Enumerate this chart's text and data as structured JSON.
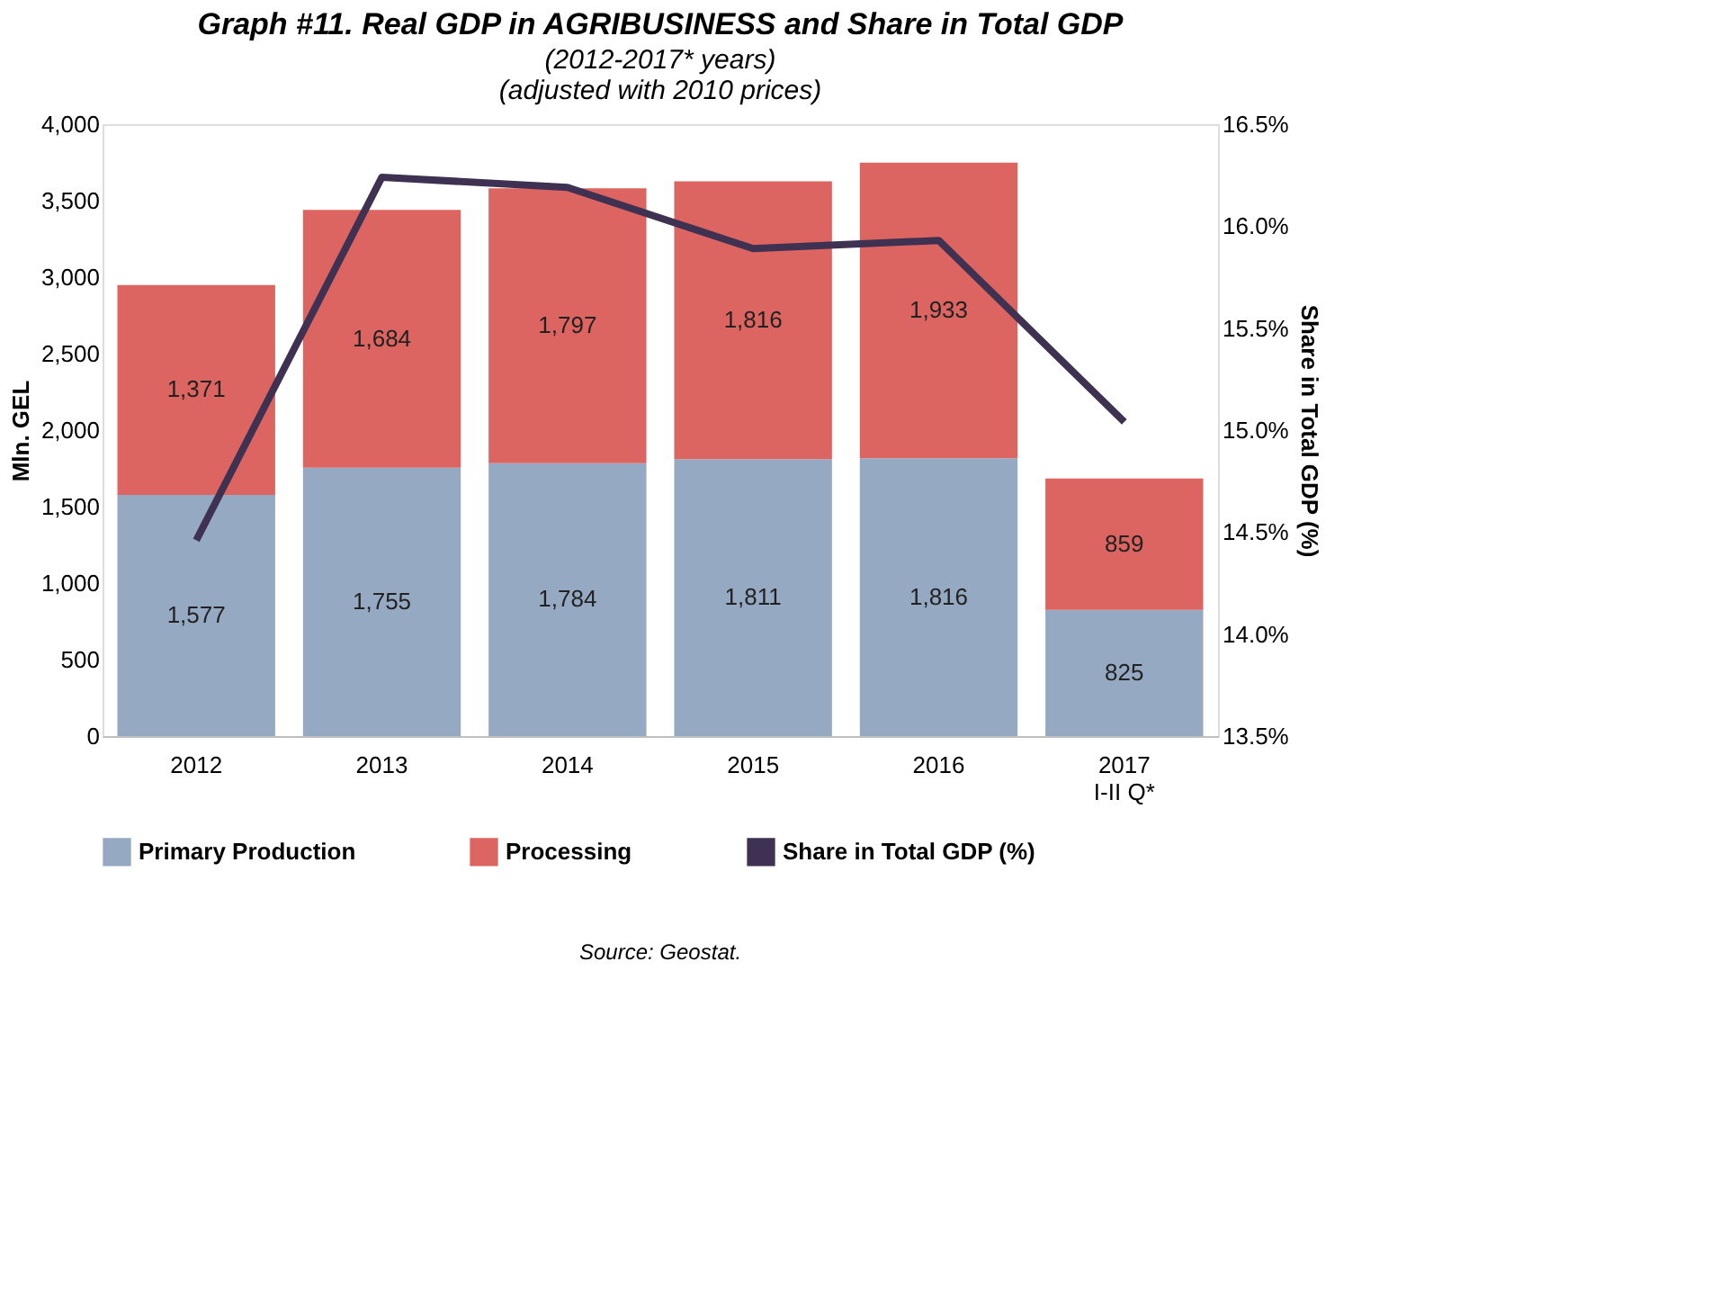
{
  "chart_data": {
    "type": "bar",
    "title": "Graph #11. Real GDP in AGRIBUSINESS and Share in Total GDP",
    "subtitle": [
      "(2012-2017* years)",
      "(adjusted with 2010 prices)"
    ],
    "ylabel": "Mln. GEL",
    "y2label": "Share in Total GDP (%)",
    "categories": [
      "2012",
      "2013",
      "2014",
      "2015",
      "2016",
      "2017\nI-II Q*"
    ],
    "stacked": true,
    "legend": "bottom",
    "grid": false,
    "series": [
      {
        "name": "Primary Production",
        "color": "#95a9c2",
        "values": [
          1577,
          1755,
          1784,
          1811,
          1816,
          825
        ],
        "value_labels": [
          "1,577",
          "1,755",
          "1,784",
          "1,811",
          "1,816",
          "825"
        ]
      },
      {
        "name": "Processing",
        "color": "#dc6461",
        "values": [
          1371,
          1684,
          1797,
          1816,
          1933,
          859
        ],
        "value_labels": [
          "1,371",
          "1,684",
          "1,797",
          "1,816",
          "1,933",
          "859"
        ]
      },
      {
        "name": "Share in Total GDP (%)",
        "type": "line",
        "axis": "y2",
        "color": "#3f3151",
        "values": [
          14.46,
          16.24,
          16.19,
          15.89,
          15.93,
          15.04
        ]
      }
    ],
    "ylim": [
      0,
      4000
    ],
    "yticks": [
      {
        "value": 0,
        "label": "0"
      },
      {
        "value": 500,
        "label": "500"
      },
      {
        "value": 1000,
        "label": "1,000"
      },
      {
        "value": 1500,
        "label": "1,500"
      },
      {
        "value": 2000,
        "label": "2,000"
      },
      {
        "value": 2500,
        "label": "2,500"
      },
      {
        "value": 3000,
        "label": "3,000"
      },
      {
        "value": 3500,
        "label": "3,500"
      },
      {
        "value": 4000,
        "label": "4,000"
      }
    ],
    "y2lim": [
      13.5,
      16.5
    ],
    "y2ticks": [
      {
        "value": 13.5,
        "label": "13.5%"
      },
      {
        "value": 14.0,
        "label": "14.0%"
      },
      {
        "value": 14.5,
        "label": "14.5%"
      },
      {
        "value": 15.0,
        "label": "15.0%"
      },
      {
        "value": 15.5,
        "label": "15.5%"
      },
      {
        "value": 16.0,
        "label": "16.0%"
      },
      {
        "value": 16.5,
        "label": "16.5%"
      }
    ],
    "annotations": [
      "Source: Geostat."
    ]
  }
}
